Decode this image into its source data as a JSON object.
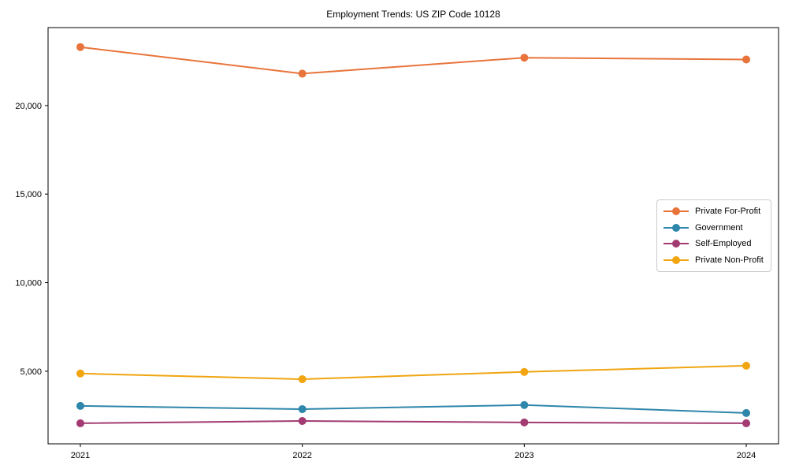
{
  "title": "Employment Trends: US ZIP Code 10128",
  "chart_data": {
    "type": "line",
    "title": "Employment Trends: US ZIP Code 10128",
    "xlabel": "",
    "ylabel": "",
    "x": [
      2021,
      2022,
      2023,
      2024
    ],
    "xtick_labels": [
      "2021",
      "2022",
      "2023",
      "2024"
    ],
    "yticks": [
      5000,
      10000,
      15000,
      20000
    ],
    "ytick_labels": [
      "5,000",
      "10,000",
      "15,000",
      "20,000"
    ],
    "ylim": [
      900,
      24400
    ],
    "grid": false,
    "legend_position": "center right",
    "series": [
      {
        "name": "Private For-Profit",
        "color": "#E8743B",
        "values": [
          23300,
          21800,
          22700,
          22600
        ]
      },
      {
        "name": "Government",
        "color": "#2E86AB",
        "values": [
          3040,
          2860,
          3090,
          2640
        ]
      },
      {
        "name": "Self-Employed",
        "color": "#A23B72",
        "values": [
          2060,
          2190,
          2110,
          2060
        ]
      },
      {
        "name": "Private Non-Profit",
        "color": "#F0A511",
        "values": [
          4870,
          4550,
          4960,
          5310
        ]
      }
    ]
  },
  "colors": {
    "spine": "#000000",
    "background": "#ffffff",
    "legend_border": "#cccccc",
    "text": "#000000"
  }
}
